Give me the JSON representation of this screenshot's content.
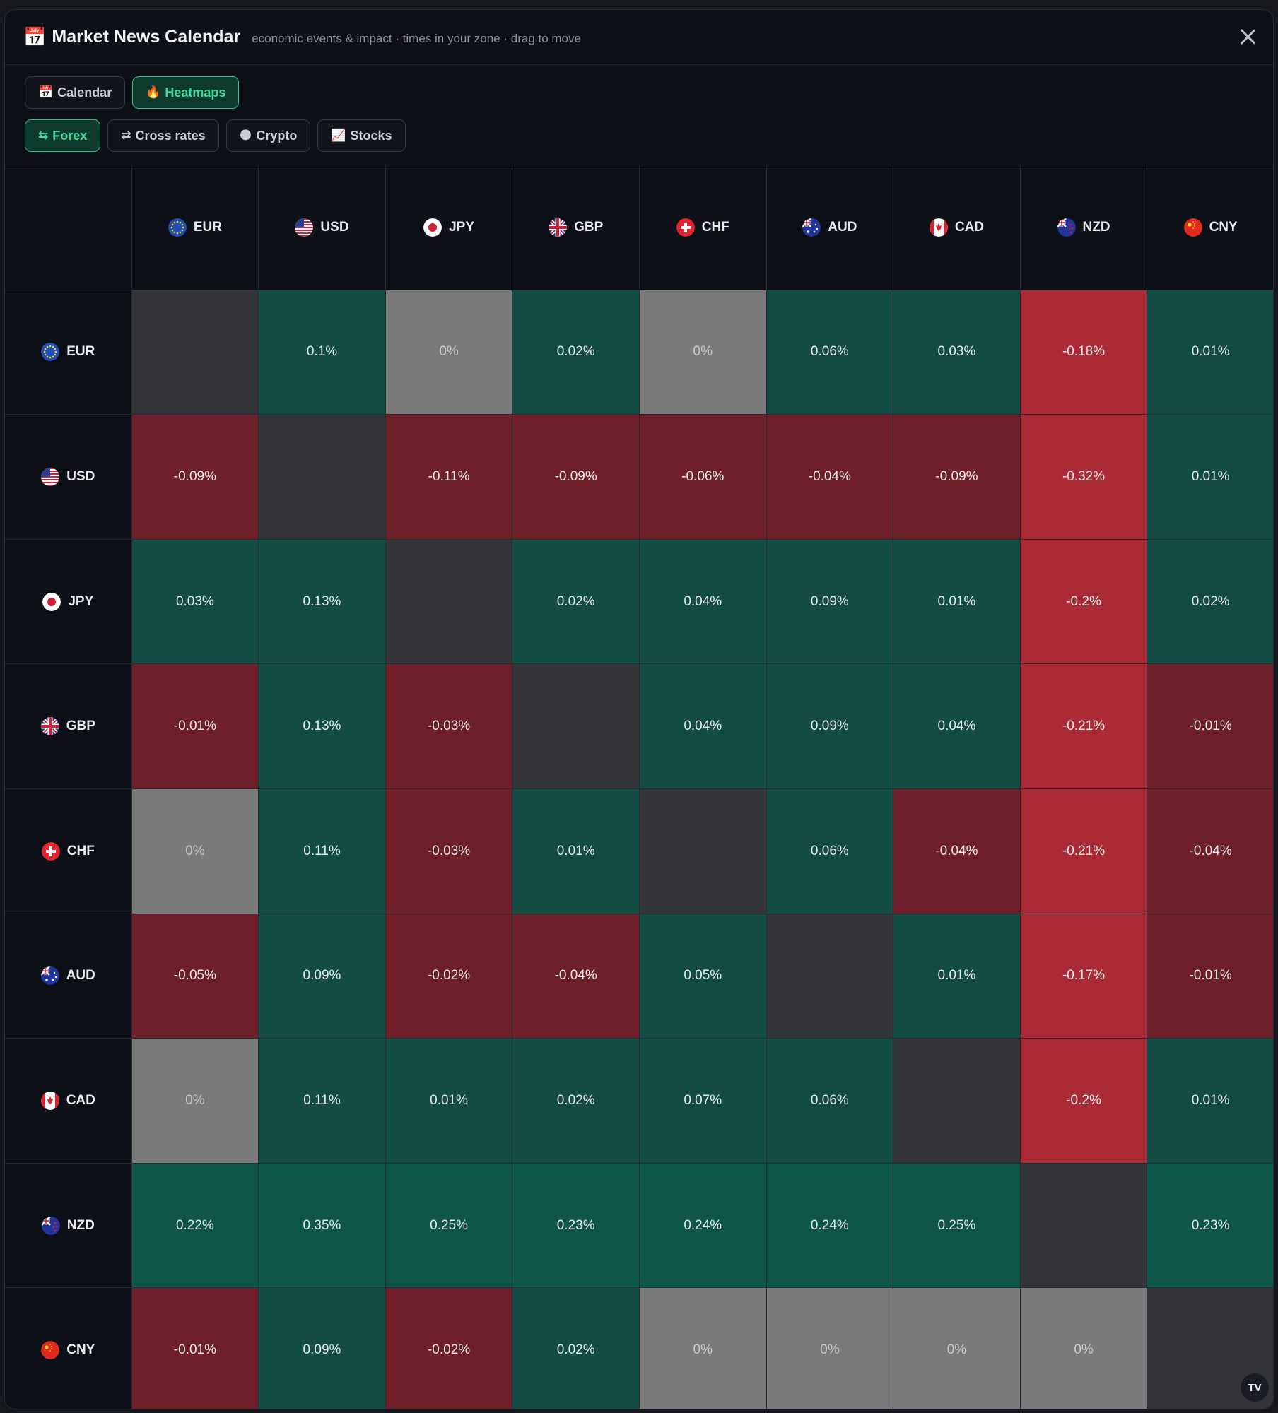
{
  "header": {
    "icon": "calendar-icon",
    "icon_glyph": "📅",
    "title": "Market News Calendar",
    "subtitle": "economic events & impact · times in your zone · drag to move"
  },
  "tabs": [
    {
      "icon": "📅",
      "label": "Calendar",
      "active": false
    },
    {
      "icon": "🔥",
      "label": "Heatmaps",
      "active": true
    }
  ],
  "subtabs": [
    {
      "icon": "⇆",
      "label": "Forex",
      "active": true
    },
    {
      "icon": "⇄",
      "label": "Cross rates",
      "active": false
    },
    {
      "icon": "🌑",
      "label": "Crypto",
      "active": false
    },
    {
      "icon": "📈",
      "label": "Stocks",
      "active": false
    }
  ],
  "currencies": [
    "EUR",
    "USD",
    "JPY",
    "GBP",
    "CHF",
    "AUD",
    "CAD",
    "NZD",
    "CNY"
  ],
  "colors": {
    "diagonal": "#323438",
    "zero": "#7a7a7a",
    "green": "#124c42",
    "green_strong": "#0e5647",
    "red": "#6e1f29",
    "red_strong": "#aa2b35"
  },
  "matrix": [
    [
      null,
      "0.1%",
      "0%",
      "0.02%",
      "0%",
      "0.06%",
      "0.03%",
      "-0.18%",
      "0.01%"
    ],
    [
      "-0.09%",
      null,
      "-0.11%",
      "-0.09%",
      "-0.06%",
      "-0.04%",
      "-0.09%",
      "-0.32%",
      "0.01%"
    ],
    [
      "0.03%",
      "0.13%",
      null,
      "0.02%",
      "0.04%",
      "0.09%",
      "0.01%",
      "-0.2%",
      "0.02%"
    ],
    [
      "-0.01%",
      "0.13%",
      "-0.03%",
      null,
      "0.04%",
      "0.09%",
      "0.04%",
      "-0.21%",
      "-0.01%"
    ],
    [
      "0%",
      "0.11%",
      "-0.03%",
      "0.01%",
      null,
      "0.06%",
      "-0.04%",
      "-0.21%",
      "-0.04%"
    ],
    [
      "-0.05%",
      "0.09%",
      "-0.02%",
      "-0.04%",
      "0.05%",
      null,
      "0.01%",
      "-0.17%",
      "-0.01%"
    ],
    [
      "0%",
      "0.11%",
      "0.01%",
      "0.02%",
      "0.07%",
      "0.06%",
      null,
      "-0.2%",
      "0.01%"
    ],
    [
      "0.22%",
      "0.35%",
      "0.25%",
      "0.23%",
      "0.24%",
      "0.24%",
      "0.25%",
      null,
      "0.23%"
    ],
    [
      "-0.01%",
      "0.09%",
      "-0.02%",
      "0.02%",
      "0%",
      "0%",
      "0%",
      "0%",
      null
    ]
  ],
  "badge": "TV"
}
